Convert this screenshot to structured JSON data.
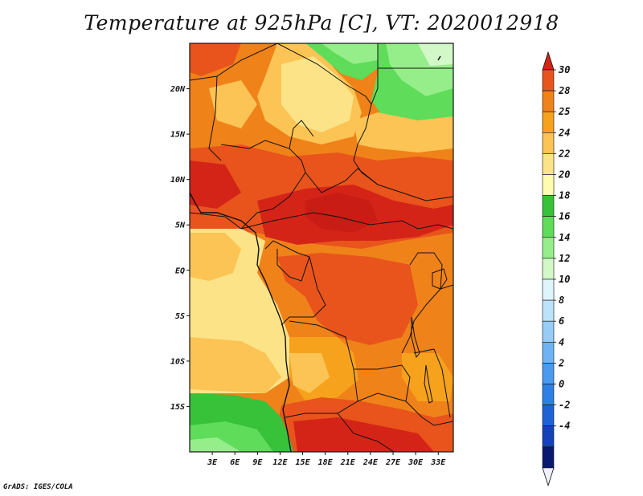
{
  "title": "Temperature at 925hPa [C], VT: 2020012918",
  "credit": "GrADS: IGES/COLA",
  "map": {
    "lon_range": [
      0,
      35
    ],
    "lat_range": [
      -20,
      25
    ],
    "lon_ticks": [
      "3E",
      "6E",
      "9E",
      "12E",
      "15E",
      "18E",
      "21E",
      "24E",
      "27E",
      "30E",
      "33E"
    ],
    "lat_ticks": [
      "20N",
      "15N",
      "10N",
      "5N",
      "EQ",
      "5S",
      "10S",
      "15S"
    ],
    "lat_tick_values": [
      20,
      15,
      10,
      5,
      0,
      -5,
      -10,
      -15
    ]
  },
  "colorbar": {
    "labels": [
      "30",
      "28",
      "25",
      "24",
      "22",
      "20",
      "18",
      "16",
      "14",
      "12",
      "10",
      "8",
      "6",
      "4",
      "2",
      "0",
      "-2",
      "-4"
    ],
    "bins": [
      {
        "color": "#f0f0fb"
      },
      {
        "color": "#0a1870"
      },
      {
        "color": "#1443b8"
      },
      {
        "color": "#1e62d6"
      },
      {
        "color": "#2f80e6"
      },
      {
        "color": "#4a9af0"
      },
      {
        "color": "#6eb4f5"
      },
      {
        "color": "#96cdf8"
      },
      {
        "color": "#bde3fb"
      },
      {
        "color": "#dff5fc"
      },
      {
        "color": "#d2f8c8"
      },
      {
        "color": "#96ee8a"
      },
      {
        "color": "#5edc5a"
      },
      {
        "color": "#38c23a"
      },
      {
        "color": "#fffcb0"
      },
      {
        "color": "#fde387"
      },
      {
        "color": "#fbc454"
      },
      {
        "color": "#f7a21c"
      },
      {
        "color": "#f0821a"
      },
      {
        "color": "#e8541c"
      },
      {
        "color": "#d42418"
      }
    ]
  }
}
